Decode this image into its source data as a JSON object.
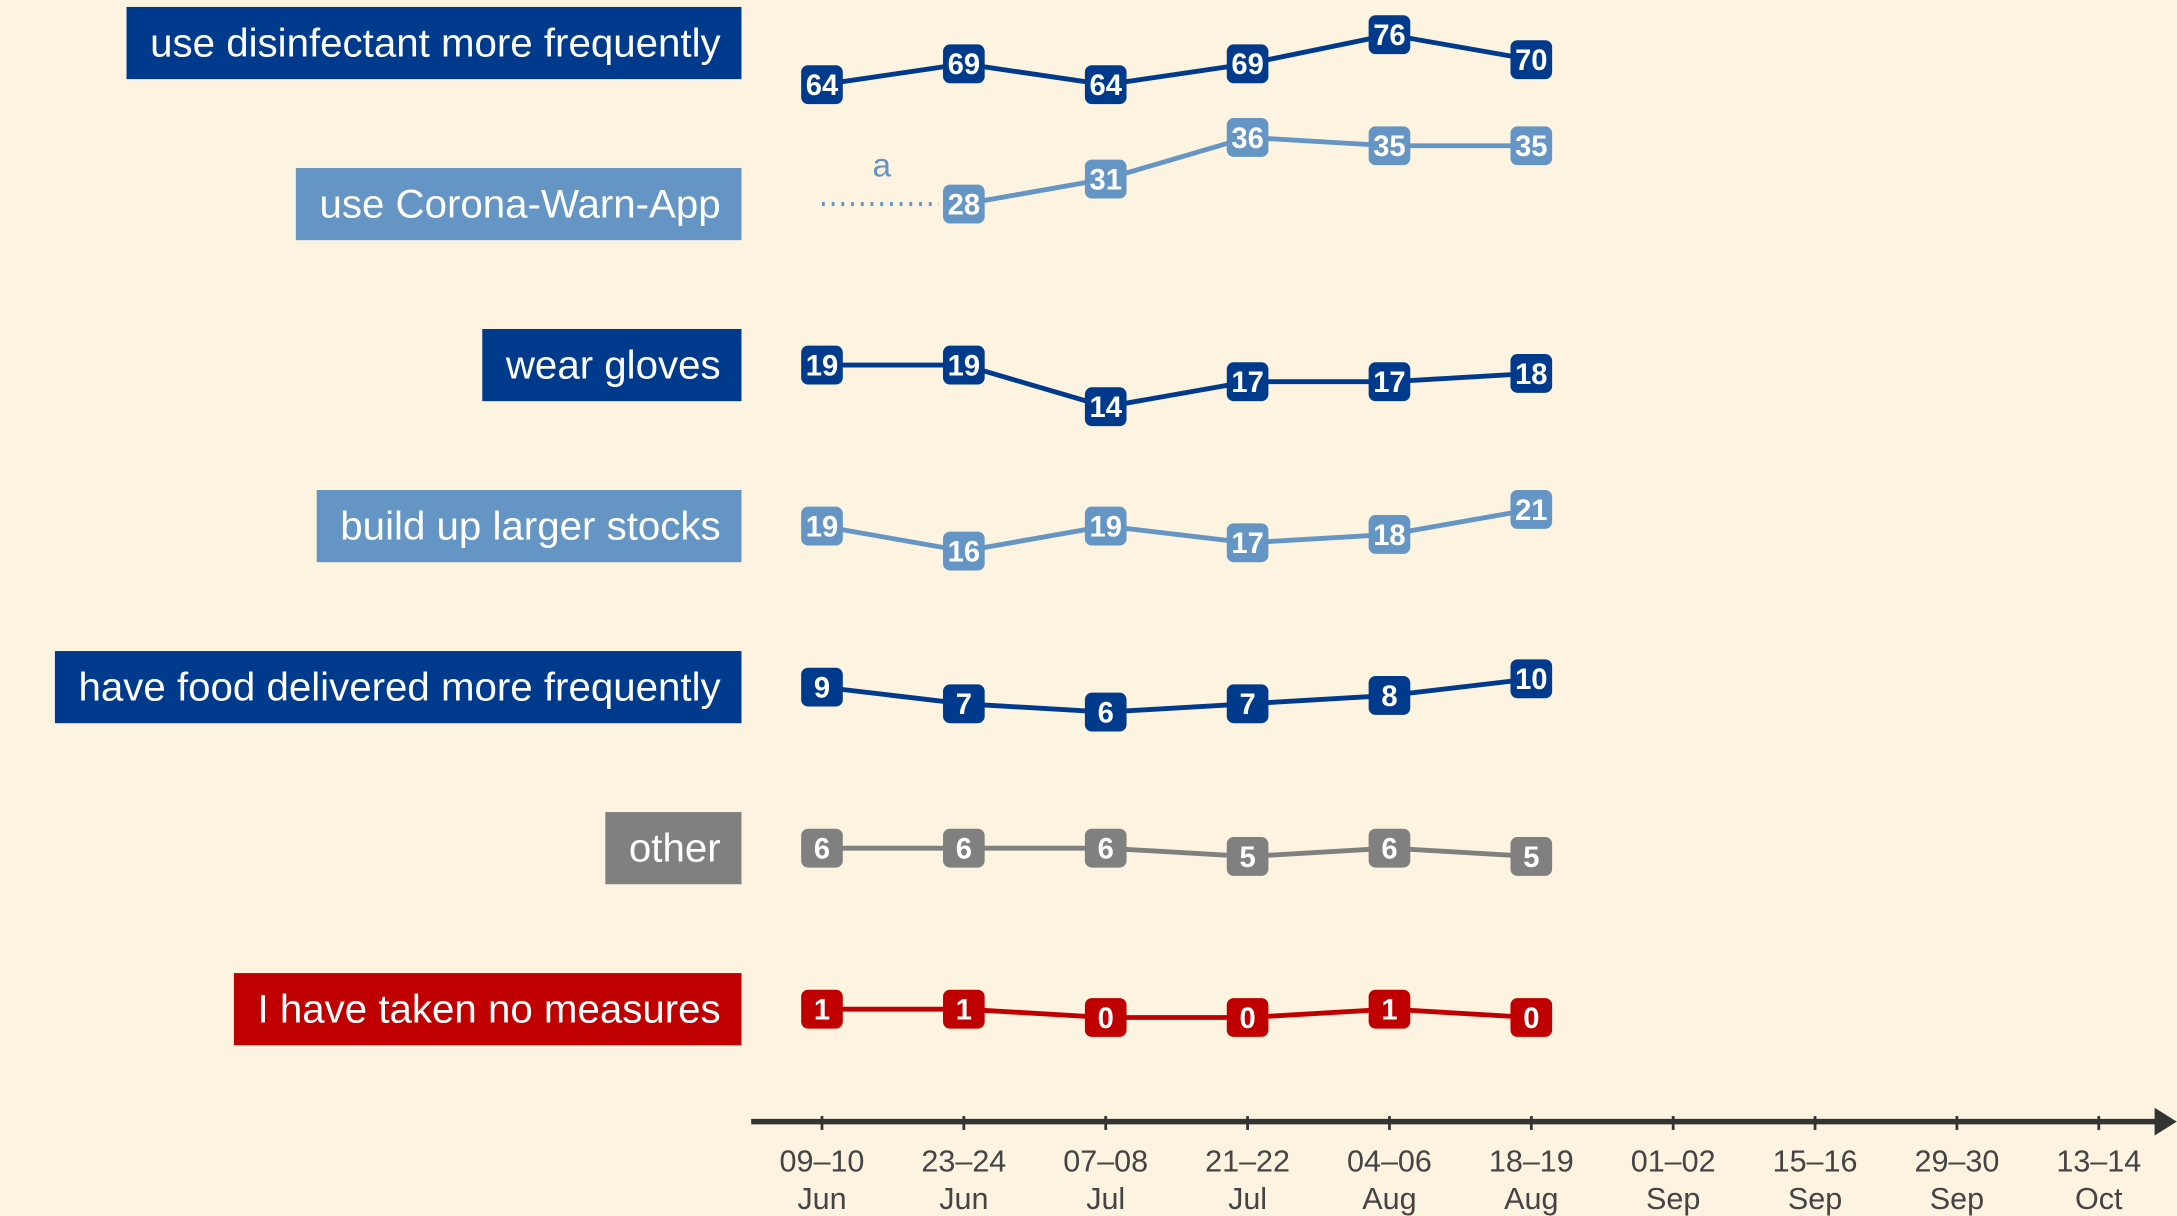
{
  "chart_data": {
    "type": "line",
    "categories": [
      "09–10 Jun",
      "23–24 Jun",
      "07–08 Jul",
      "21–22 Jul",
      "04–06 Aug",
      "18–19 Aug",
      "01–02 Sep",
      "15–16 Sep",
      "29–30 Sep",
      "13–14 Oct"
    ],
    "series": [
      {
        "name": "use disinfectant more frequently",
        "color": "#003a8c",
        "ylim": [
          60,
          80
        ],
        "values": [
          64,
          69,
          64,
          69,
          76,
          70,
          null,
          null,
          null,
          null
        ]
      },
      {
        "name": "use Corona-Warn-App",
        "color": "#6495c4",
        "ylim": [
          27,
          37
        ],
        "annotation": "a",
        "values": [
          null,
          28,
          31,
          36,
          35,
          35,
          null,
          null,
          null,
          null
        ]
      },
      {
        "name": "wear gloves",
        "color": "#003a8c",
        "ylim": [
          13,
          23
        ],
        "values": [
          19,
          19,
          14,
          17,
          17,
          18,
          null,
          null,
          null,
          null
        ]
      },
      {
        "name": "build up larger stocks",
        "color": "#6495c4",
        "ylim": [
          15,
          25
        ],
        "values": [
          19,
          16,
          19,
          17,
          18,
          21,
          null,
          null,
          null,
          null
        ]
      },
      {
        "name": "have food delivered more frequently",
        "color": "#003a8c",
        "ylim": [
          5,
          15
        ],
        "values": [
          9,
          7,
          6,
          7,
          8,
          10,
          null,
          null,
          null,
          null
        ]
      },
      {
        "name": "other",
        "color": "#808080",
        "ylim": [
          0,
          10
        ],
        "values": [
          6,
          6,
          6,
          5,
          6,
          5,
          null,
          null,
          null,
          null
        ]
      },
      {
        "name": "I have taken no measures",
        "color": "#c00000",
        "ylim": [
          0,
          10
        ],
        "values": [
          1,
          1,
          0,
          0,
          1,
          0,
          null,
          null,
          null,
          null
        ]
      }
    ]
  }
}
